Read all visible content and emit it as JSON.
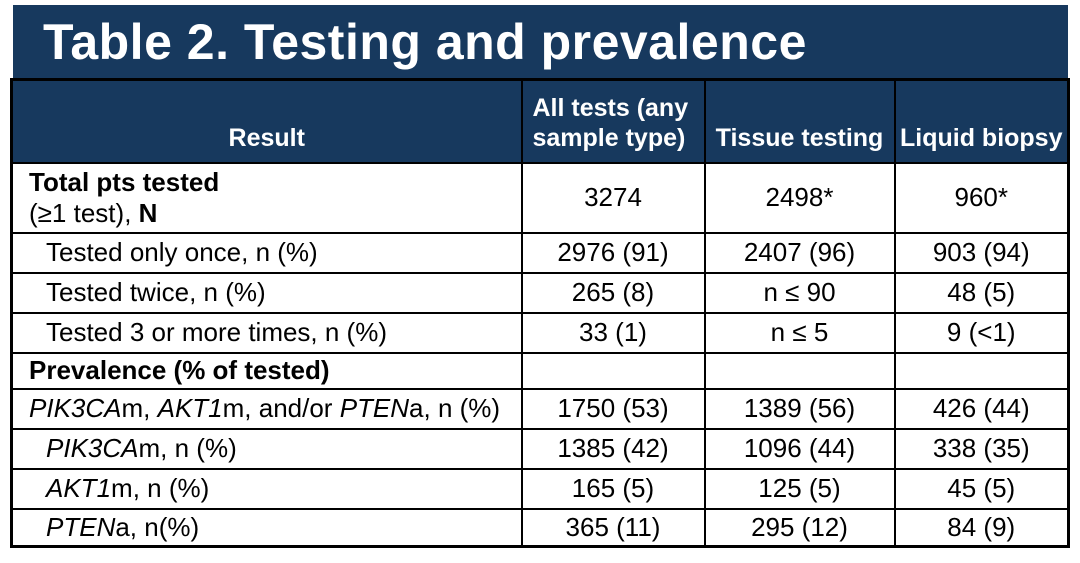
{
  "title": "Table 2. Testing and prevalence",
  "colors": {
    "header_navy": "#17395e",
    "border_black": "#000000",
    "header_text": "#ffffff",
    "body_text": "#000000",
    "background": "#ffffff"
  },
  "table": {
    "columns": [
      "Result",
      "All tests (any sample type)",
      "Tissue testing",
      "Liquid biopsy"
    ],
    "rows": [
      {
        "label": [
          {
            "t": "Total pts tested",
            "b": true
          },
          {
            "t": "(≥1 test)",
            "br": true
          },
          {
            "t": ", "
          },
          {
            "t": "N",
            "b": true
          }
        ],
        "values": [
          "3274",
          "2498*",
          "960*"
        ]
      },
      {
        "label": [
          {
            "t": "Tested only once, n (%)"
          }
        ],
        "values": [
          "2976 (91)",
          "2407 (96)",
          "903 (94)"
        ]
      },
      {
        "label": [
          {
            "t": "Tested twice, n (%)"
          }
        ],
        "values": [
          "265 (8)",
          "n ≤ 90",
          "48 (5)"
        ]
      },
      {
        "label": [
          {
            "t": "Tested 3 or more times, n (%)"
          }
        ],
        "values": [
          "33 (1)",
          "n ≤ 5",
          "9 (<1)"
        ]
      },
      {
        "label": [
          {
            "t": "Prevalence (% of tested)",
            "b": true
          }
        ],
        "values": [
          "",
          "",
          ""
        ]
      },
      {
        "label": [
          {
            "t": "PIK3CA",
            "i": true
          },
          {
            "t": "m, "
          },
          {
            "t": "AKT1",
            "i": true
          },
          {
            "t": "m, and/or "
          },
          {
            "t": "PTEN",
            "i": true
          },
          {
            "t": "a, n (%)"
          }
        ],
        "values": [
          "1750 (53)",
          "1389 (56)",
          "426 (44)"
        ]
      },
      {
        "label": [
          {
            "t": "PIK3CA",
            "i": true
          },
          {
            "t": "m, n (%)"
          }
        ],
        "values": [
          "1385 (42)",
          "1096 (44)",
          "338 (35)"
        ]
      },
      {
        "label": [
          {
            "t": "AKT1",
            "i": true
          },
          {
            "t": "m, n (%)"
          }
        ],
        "values": [
          "165 (5)",
          "125 (5)",
          "45 (5)"
        ]
      },
      {
        "label": [
          {
            "t": "PTEN",
            "i": true
          },
          {
            "t": "a, n(%)"
          }
        ],
        "values": [
          "365 (11)",
          "295 (12)",
          "84 (9)"
        ]
      }
    ]
  }
}
